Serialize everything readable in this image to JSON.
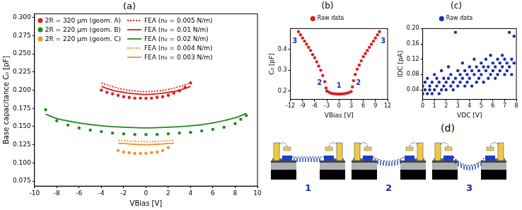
{
  "chart_data": [
    {
      "type": "scatter",
      "title": "(a)",
      "x_label": "VBias [V]",
      "y_label": "Base capacitance C₀ [pF]",
      "xlim": [
        -10,
        10
      ],
      "xticks": [
        -10,
        -8,
        -6,
        -4,
        -2,
        0,
        2,
        4,
        6,
        8,
        10
      ],
      "ylim": [
        0.068,
        0.305
      ],
      "yticks": [
        0.075,
        {
          "value": 0.1,
          "label": "0.100"
        },
        0.125,
        {
          "value": 0.15,
          "label": "0.150"
        },
        0.175,
        {
          "value": 0.2,
          "label": "0.200"
        },
        0.225,
        {
          "value": 0.25,
          "label": "0.250"
        },
        0.275,
        {
          "value": 0.3,
          "label": "0.300"
        }
      ],
      "grid": false,
      "legend": "upper left",
      "series": [
        {
          "name": "2R = 320 μm (geom. A)",
          "type": "scatter",
          "color": "#e31a1c",
          "marker": "circle",
          "x": [
            -4,
            -3.5,
            -3,
            -2.5,
            -2,
            -1.5,
            -1,
            -0.5,
            0,
            0.5,
            1,
            1.5,
            2,
            2.5,
            3,
            3.5,
            4
          ],
          "values": [
            0.2,
            0.197,
            0.195,
            0.193,
            0.191,
            0.19,
            0.189,
            0.189,
            0.189,
            0.189,
            0.19,
            0.191,
            0.193,
            0.196,
            0.199,
            0.204,
            0.21
          ]
        },
        {
          "name": "2R = 220 μm (geom. B)",
          "type": "scatter",
          "color": "#1e8c1e",
          "marker": "circle",
          "x": [
            -9,
            -8,
            -7,
            -6,
            -5,
            -4,
            -3,
            -2,
            -1,
            0,
            1,
            2,
            3,
            4,
            5,
            6,
            7,
            8,
            8.5,
            9
          ],
          "values": [
            0.173,
            0.158,
            0.152,
            0.148,
            0.145,
            0.143,
            0.141,
            0.14,
            0.139,
            0.139,
            0.139,
            0.14,
            0.141,
            0.142,
            0.144,
            0.146,
            0.149,
            0.154,
            0.16,
            0.165
          ]
        },
        {
          "name": "2R = 220 μm (geom. C)",
          "type": "scatter",
          "color": "#f0922b",
          "marker": "circle",
          "x": [
            -2.5,
            -2,
            -1.5,
            -1,
            -0.5,
            0,
            0.5,
            1,
            1.5,
            2
          ],
          "values": [
            0.117,
            0.115,
            0.114,
            0.113,
            0.113,
            0.113,
            0.114,
            0.115,
            0.117,
            0.121
          ]
        },
        {
          "name": "FEA (n₀ = 0.005 N/m)",
          "type": "line",
          "color": "#e31a1c",
          "line_style": "dotted",
          "x": [
            -4,
            -3,
            -2,
            -1,
            0,
            1,
            2,
            3,
            4
          ],
          "values": [
            0.21,
            0.205,
            0.201,
            0.199,
            0.198,
            0.199,
            0.201,
            0.205,
            0.21
          ]
        },
        {
          "name": "FEA (n₀ = 0.01 N/m)",
          "type": "line",
          "color": "#e31a1c",
          "line_style": "solid",
          "x": [
            -4,
            -3,
            -2,
            -1,
            0,
            1,
            2,
            3,
            4
          ],
          "values": [
            0.205,
            0.2,
            0.197,
            0.195,
            0.194,
            0.195,
            0.197,
            0.2,
            0.205
          ]
        },
        {
          "name": "FEA (n₀ = 0.02 N/m)",
          "type": "line",
          "color": "#1e8c1e",
          "line_style": "solid",
          "x": [
            -9,
            -8,
            -6,
            -4,
            -2,
            0,
            2,
            4,
            6,
            8,
            9
          ],
          "values": [
            0.167,
            0.161,
            0.155,
            0.151,
            0.149,
            0.148,
            0.149,
            0.151,
            0.155,
            0.162,
            0.168
          ]
        },
        {
          "name": "FEA (n₀ = 0.004 N/m)",
          "type": "line",
          "color": "#f0922b",
          "line_style": "dotted",
          "x": [
            -2.5,
            -1.5,
            0,
            1.5,
            2.5
          ],
          "values": [
            0.131,
            0.13,
            0.129,
            0.13,
            0.131
          ]
        },
        {
          "name": "FEA (n₀ = 0.003 N/m)",
          "type": "line",
          "color": "#f0922b",
          "line_style": "solid",
          "x": [
            -2.5,
            -1.5,
            0,
            1.5,
            2.5
          ],
          "values": [
            0.127,
            0.126,
            0.125,
            0.126,
            0.127
          ]
        }
      ]
    },
    {
      "type": "scatter",
      "title": "(b)",
      "x_label": "VBias [V]",
      "y_label": "C₀ [pF]",
      "xlim": [
        -12,
        12
      ],
      "xticks": [
        -12,
        -9,
        -6,
        -3,
        0,
        3,
        6,
        9,
        12
      ],
      "ylim": [
        0.16,
        0.5
      ],
      "yticks": [
        0.2,
        0.3,
        0.4
      ],
      "grid": false,
      "legend": "top",
      "series": [
        {
          "name": "Raw data",
          "type": "scatter",
          "color": "#d62020",
          "marker": "circle",
          "x": [
            -10,
            -9.5,
            -9,
            -8.5,
            -8,
            -7.5,
            -7,
            -6.5,
            -6,
            -5.5,
            -5,
            -4.5,
            -4,
            -3.5,
            -3.2,
            -3,
            -2.5,
            -2,
            -1.5,
            -1,
            -0.5,
            0,
            0.5,
            1,
            1.5,
            2,
            2.5,
            3,
            3.3,
            3.6,
            4,
            4.5,
            5,
            5.5,
            6,
            6.5,
            7,
            7.5,
            8,
            8.5,
            9,
            9.5,
            10
          ],
          "values": [
            0.485,
            0.47,
            0.455,
            0.44,
            0.425,
            0.41,
            0.395,
            0.375,
            0.36,
            0.34,
            0.32,
            0.3,
            0.275,
            0.245,
            0.215,
            0.2,
            0.195,
            0.19,
            0.188,
            0.187,
            0.186,
            0.186,
            0.186,
            0.187,
            0.188,
            0.19,
            0.193,
            0.198,
            0.22,
            0.25,
            0.28,
            0.305,
            0.325,
            0.345,
            0.365,
            0.38,
            0.395,
            0.41,
            0.425,
            0.44,
            0.455,
            0.47,
            0.485
          ]
        }
      ],
      "annotations": [
        {
          "text": "1",
          "x": 0,
          "y": 0.225,
          "color": "#1a2fa0"
        },
        {
          "text": "2",
          "x": -4.8,
          "y": 0.24,
          "color": "#1a2fa0"
        },
        {
          "text": "2",
          "x": 4.8,
          "y": 0.24,
          "color": "#1a2fa0"
        },
        {
          "text": "3",
          "x": -10.9,
          "y": 0.44,
          "color": "#1a2fa0"
        },
        {
          "text": "3",
          "x": 10.9,
          "y": 0.44,
          "color": "#1a2fa0"
        }
      ]
    },
    {
      "type": "scatter",
      "title": "(c)",
      "x_label": "VDC [V]",
      "y_label": "IDC [pA]",
      "xlim": [
        0,
        8
      ],
      "xticks": [
        0,
        1,
        2,
        3,
        4,
        5,
        6,
        7,
        8
      ],
      "ylim": [
        0.015,
        0.2
      ],
      "yticks": [
        0.04,
        0.08,
        0.12,
        0.16,
        {
          "value": 0.2,
          "label": "0.20"
        }
      ],
      "grid": false,
      "legend": "top",
      "series": [
        {
          "name": "Raw data",
          "type": "scatter",
          "color": "#1f2fa8",
          "marker": "circle",
          "x": [
            0,
            0,
            0.2,
            0.2,
            0.4,
            0.4,
            0.6,
            0.6,
            0.8,
            0.8,
            1,
            1,
            1.2,
            1.2,
            1.4,
            1.4,
            1.6,
            1.6,
            1.8,
            1.8,
            2,
            2,
            2.2,
            2.2,
            2.4,
            2.4,
            2.6,
            2.6,
            2.8,
            2.8,
            3,
            3,
            3.2,
            3.2,
            3.4,
            3.4,
            3.6,
            3.6,
            3.8,
            3.8,
            4,
            4,
            4.2,
            4.2,
            4.4,
            4.4,
            4.6,
            4.6,
            4.8,
            4.8,
            5,
            5,
            5.2,
            5.2,
            5.4,
            5.4,
            5.6,
            5.6,
            5.8,
            5.8,
            6,
            6,
            6.2,
            6.2,
            6.4,
            6.4,
            6.6,
            6.6,
            6.8,
            6.8,
            7,
            7,
            7.2,
            7.2,
            7.4,
            7.4,
            7.6,
            7.6,
            7.8,
            7.8
          ],
          "values": [
            0.03,
            0.05,
            0.04,
            0.06,
            0.03,
            0.07,
            0.05,
            0.04,
            0.06,
            0.03,
            0.04,
            0.08,
            0.05,
            0.07,
            0.03,
            0.06,
            0.04,
            0.09,
            0.05,
            0.07,
            0.06,
            0.04,
            0.07,
            0.1,
            0.05,
            0.08,
            0.06,
            0.04,
            0.07,
            0.19,
            0.05,
            0.09,
            0.08,
            0.06,
            0.07,
            0.11,
            0.05,
            0.09,
            0.08,
            0.06,
            0.07,
            0.1,
            0.09,
            0.05,
            0.08,
            0.12,
            0.06,
            0.1,
            0.09,
            0.07,
            0.08,
            0.11,
            0.1,
            0.06,
            0.09,
            0.12,
            0.07,
            0.1,
            0.08,
            0.13,
            0.09,
            0.11,
            0.1,
            0.07,
            0.08,
            0.12,
            0.11,
            0.09,
            0.1,
            0.13,
            0.08,
            0.12,
            0.11,
            0.09,
            0.1,
            0.19,
            0.12,
            0.08,
            0.11,
            0.18
          ]
        }
      ]
    }
  ],
  "diagram": {
    "title": "(d)",
    "labels": [
      "1",
      "2",
      "3"
    ]
  }
}
